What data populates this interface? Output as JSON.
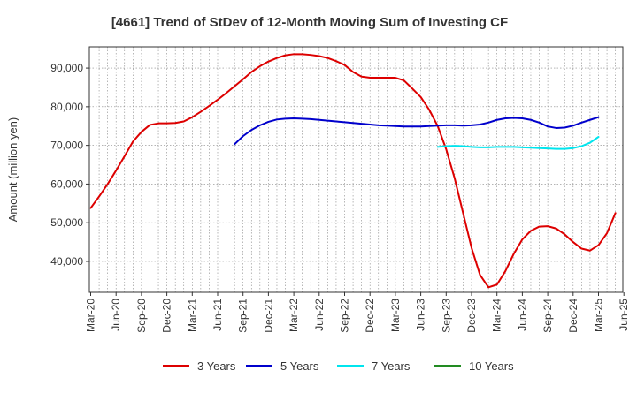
{
  "chart_data": {
    "type": "line",
    "title": "[4661]  Trend of StDev of 12-Month Moving Sum of Investing CF",
    "xlabel": "",
    "ylabel": "Amount (million yen)",
    "ylim": [
      32000,
      95500
    ],
    "yticks": [
      40000,
      50000,
      60000,
      70000,
      80000,
      90000
    ],
    "ytick_labels": [
      "40,000",
      "50,000",
      "60,000",
      "70,000",
      "80,000",
      "90,000"
    ],
    "xtick_labels": [
      "Mar-20",
      "Jun-20",
      "Sep-20",
      "Dec-20",
      "Mar-21",
      "Jun-21",
      "Sep-21",
      "Dec-21",
      "Mar-22",
      "Jun-22",
      "Sep-22",
      "Dec-22",
      "Mar-23",
      "Jun-23",
      "Sep-23",
      "Dec-23",
      "Mar-24",
      "Jun-24",
      "Sep-24",
      "Dec-24",
      "Mar-25",
      "Jun-25"
    ],
    "x_start": "2020-03",
    "grid": true,
    "legend_position": "bottom",
    "series": [
      {
        "name": "3 Years",
        "color": "#dd0000",
        "start_month": "2020-03",
        "values": [
          53800,
          56800,
          60000,
          63500,
          67200,
          71000,
          73500,
          75300,
          75700,
          75700,
          75800,
          76200,
          77300,
          78700,
          80200,
          81800,
          83500,
          85300,
          87100,
          89000,
          90500,
          91700,
          92600,
          93300,
          93600,
          93600,
          93400,
          93100,
          92600,
          91800,
          90800,
          89000,
          87800,
          87500,
          87500,
          87500,
          87500,
          86800,
          84700,
          82500,
          79200,
          75000,
          69000,
          61500,
          52500,
          43500,
          36500,
          33300,
          34000,
          37500,
          42000,
          45700,
          47900,
          49000,
          49100,
          48500,
          47000,
          45000,
          43300,
          42800,
          44200,
          47300,
          52500
        ]
      },
      {
        "name": "5 Years",
        "color": "#0000cc",
        "start_month": "2021-08",
        "values": [
          70300,
          72400,
          74000,
          75200,
          76100,
          76700,
          76900,
          77000,
          76900,
          76800,
          76600,
          76400,
          76200,
          76000,
          75800,
          75600,
          75400,
          75200,
          75100,
          75000,
          74900,
          74900,
          74900,
          75000,
          75100,
          75200,
          75200,
          75100,
          75200,
          75400,
          75900,
          76600,
          77000,
          77100,
          77000,
          76600,
          75900,
          74900,
          74500,
          74600,
          75100,
          75900,
          76600,
          77300
        ]
      },
      {
        "name": "7 Years",
        "color": "#00e5ee",
        "start_month": "2023-08",
        "values": [
          69600,
          69800,
          69900,
          69800,
          69600,
          69500,
          69500,
          69600,
          69600,
          69600,
          69500,
          69400,
          69300,
          69200,
          69100,
          69100,
          69300,
          69800,
          70700,
          72200
        ]
      },
      {
        "name": "10 Years",
        "color": "#228b22",
        "start_month": "2025-03",
        "values": []
      }
    ]
  }
}
